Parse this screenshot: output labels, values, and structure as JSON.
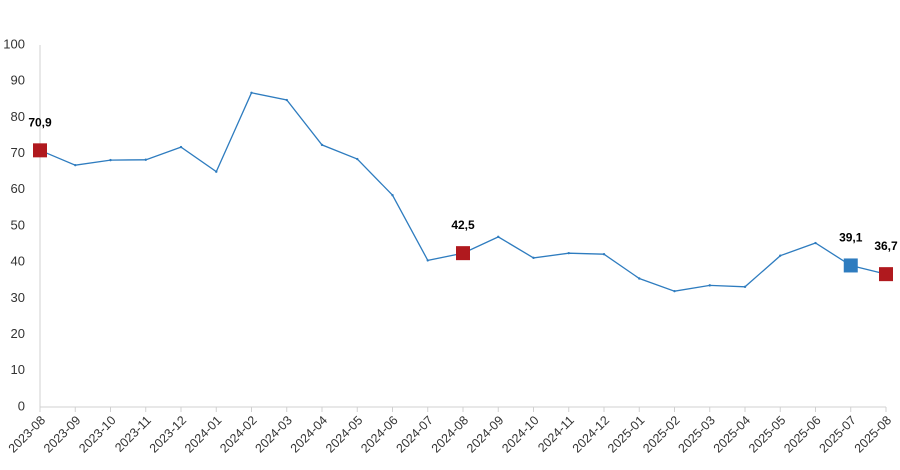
{
  "chart_data": {
    "type": "line",
    "title": "",
    "xlabel": "",
    "ylabel": "",
    "ylim": [
      0,
      100
    ],
    "yticks": [
      "0",
      "10",
      "20",
      "30",
      "40",
      "50",
      "60",
      "70",
      "80",
      "90",
      "100"
    ],
    "grid": false,
    "legend": "none",
    "categories": [
      "2023-08",
      "2023-09",
      "2023-10",
      "2023-11",
      "2023-12",
      "2024-01",
      "2024-02",
      "2024-03",
      "2024-04",
      "2024-05",
      "2024-06",
      "2024-07",
      "2024-08",
      "2024-09",
      "2024-10",
      "2024-11",
      "2024-12",
      "2025-01",
      "2025-02",
      "2025-03",
      "2025-04",
      "2025-05",
      "2025-06",
      "2025-07",
      "2025-08"
    ],
    "series": [
      {
        "values": [
          70.9,
          66.8,
          68.2,
          68.3,
          71.8,
          65.0,
          86.8,
          84.8,
          72.4,
          68.5,
          58.5,
          40.5,
          42.5,
          47.0,
          41.2,
          42.5,
          42.2,
          35.5,
          32.0,
          33.6,
          33.2,
          41.8,
          45.3,
          39.1,
          36.7
        ],
        "color": "#2e7cbf"
      }
    ],
    "highlights": [
      {
        "index": 0,
        "label": "70,9",
        "color": "#b0191e"
      },
      {
        "index": 12,
        "label": "42,5",
        "color": "#b0191e"
      },
      {
        "index": 23,
        "label": "39,1",
        "color": "#2e7cbf"
      },
      {
        "index": 24,
        "label": "36,7",
        "color": "#b0191e"
      }
    ]
  }
}
